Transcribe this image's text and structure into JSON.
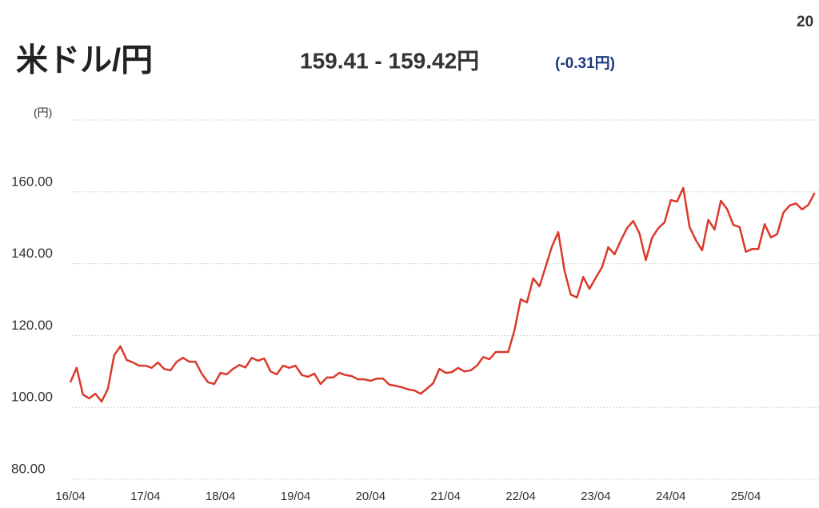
{
  "chart_data": {
    "type": "line",
    "title": "米ドル/円",
    "price": "159.41 - 159.42円",
    "change": "(-0.31円)",
    "corner_text": "20",
    "y_label": "(円)",
    "categories": [
      "16/04",
      null,
      null,
      null,
      null,
      null,
      null,
      null,
      null,
      null,
      null,
      null,
      "17/04",
      null,
      null,
      null,
      null,
      null,
      null,
      null,
      null,
      null,
      null,
      null,
      "18/04",
      null,
      null,
      null,
      null,
      null,
      null,
      null,
      null,
      null,
      null,
      null,
      "19/04",
      null,
      null,
      null,
      null,
      null,
      null,
      null,
      null,
      null,
      null,
      null,
      "20/04",
      null,
      null,
      null,
      null,
      null,
      null,
      null,
      null,
      null,
      null,
      null,
      "21/04",
      null,
      null,
      null,
      null,
      null,
      null,
      null,
      null,
      null,
      null,
      null,
      "22/04",
      null,
      null,
      null,
      null,
      null,
      null,
      null,
      null,
      null,
      null,
      null,
      "23/04",
      null,
      null,
      null,
      null,
      null,
      null,
      null,
      null,
      null,
      null,
      null,
      "24/04",
      null,
      null,
      null,
      null,
      null,
      null,
      null,
      null,
      null,
      null,
      null,
      "25/04",
      null,
      null,
      null,
      null,
      null,
      null,
      null,
      null,
      null,
      null,
      null
    ],
    "series": [
      {
        "name": "米ドル/円",
        "color": "#d93a2b",
        "values": [
          107,
          111,
          103.6,
          102.5,
          103.8,
          101.6,
          105.2,
          114.5,
          117,
          113.2,
          112.5,
          111.6,
          111.6,
          111,
          112.5,
          110.7,
          110.3,
          112.7,
          113.8,
          112.7,
          112.7,
          109.4,
          107,
          106.5,
          109.6,
          109.2,
          110.7,
          111.8,
          111.1,
          113.8,
          113,
          113.6,
          110,
          109.2,
          111.6,
          111,
          111.6,
          109,
          108.5,
          109.4,
          106.5,
          108.3,
          108.3,
          109.6,
          109,
          108.7,
          107.8,
          107.8,
          107.4,
          108,
          108,
          106.3,
          106,
          105.6,
          105,
          104.7,
          103.8,
          105.2,
          106.7,
          110.7,
          109.6,
          109.8,
          111,
          110,
          110.3,
          111.6,
          114,
          113.4,
          115.4,
          115.4,
          115.4,
          121.4,
          130.1,
          129.2,
          135.9,
          133.7,
          139.2,
          144.8,
          148.8,
          138.1,
          131.4,
          130.6,
          136.3,
          133,
          136.1,
          139,
          144.6,
          142.6,
          146.4,
          149.9,
          151.9,
          148.4,
          141,
          147.2,
          149.9,
          151.5,
          157.7,
          157.3,
          161.1,
          150.2,
          146.6,
          143.7,
          152.2,
          149.5,
          157.5,
          155.2,
          150.8,
          150.2,
          143.3,
          144.1,
          144.1,
          151,
          147.3,
          148.2,
          154.2,
          156.2,
          156.8,
          155.1,
          156.4,
          159.7
        ]
      }
    ],
    "ylim": [
      80,
      180
    ],
    "yticks": [
      {
        "value": 80,
        "label": "80.00"
      },
      {
        "value": 100,
        "label": "100.00"
      },
      {
        "value": 120,
        "label": "120.00"
      },
      {
        "value": 140,
        "label": "140.00"
      },
      {
        "value": 160,
        "label": "160.00"
      }
    ],
    "grid": true
  }
}
